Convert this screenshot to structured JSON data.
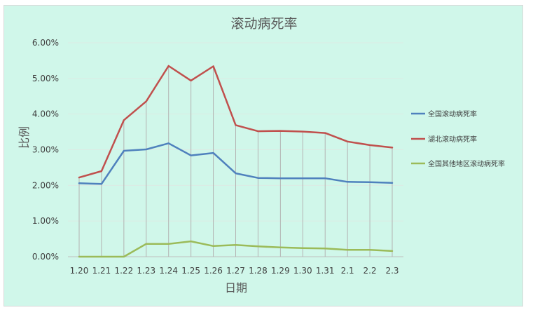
{
  "chart_data": {
    "type": "line",
    "title": "滚动病死率",
    "xlabel": "日期",
    "ylabel": "比例",
    "categories": [
      "1.20",
      "1.21",
      "1.22",
      "1.23",
      "1.24",
      "1.25",
      "1.26",
      "1.27",
      "1.28",
      "1.29",
      "1.30",
      "1.31",
      "2.1",
      "2.2",
      "2.3"
    ],
    "ylim": [
      0,
      0.06
    ],
    "y_ticks": [
      "0.00%",
      "1.00%",
      "2.00%",
      "3.00%",
      "4.00%",
      "5.00%",
      "6.00%"
    ],
    "grid": "horizontal and vertical drop lines",
    "legend_position": "right",
    "series": [
      {
        "name": "全国滚动病死率",
        "color": "#4f81bd",
        "values": [
          0.0206,
          0.0204,
          0.0297,
          0.0301,
          0.0318,
          0.0284,
          0.0291,
          0.0234,
          0.0221,
          0.022,
          0.022,
          0.022,
          0.021,
          0.0209,
          0.0207
        ]
      },
      {
        "name": "湖北滚动病死率",
        "color": "#c0504d",
        "values": [
          0.0222,
          0.024,
          0.0383,
          0.0436,
          0.0535,
          0.0494,
          0.0534,
          0.0369,
          0.0352,
          0.0353,
          0.0351,
          0.0347,
          0.0323,
          0.0313,
          0.0306
        ]
      },
      {
        "name": "全国其他地区滚动病死率",
        "color": "#9bbb59",
        "values": [
          0.0,
          0.0,
          0.0,
          0.0036,
          0.0036,
          0.0043,
          0.003,
          0.0033,
          0.0029,
          0.0026,
          0.0024,
          0.0023,
          0.0019,
          0.0019,
          0.0016
        ]
      }
    ]
  }
}
